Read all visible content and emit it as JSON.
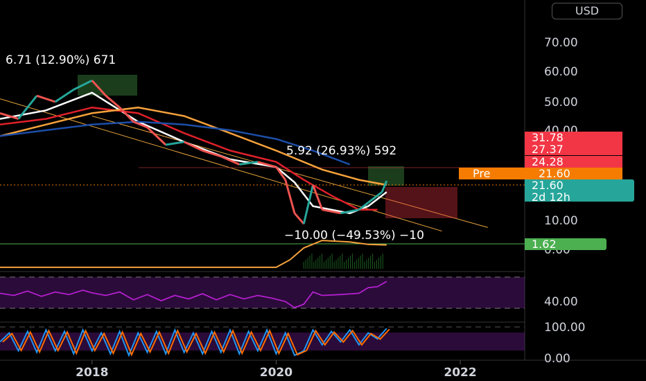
{
  "currency": "USD",
  "chart_data": {
    "type": "line",
    "main": {
      "y_axis": {
        "ticks": [
          "70.00",
          "60.00",
          "50.00",
          "40.00",
          "10.00",
          "0.00"
        ],
        "ylim": [
          0,
          75
        ]
      },
      "annotations": [
        "6.71 (12.90%) 671",
        "5.92 (26.93%) 592",
        "−10.00 (−49.53%) −10"
      ],
      "price_series": [
        {
          "x": 2017.0,
          "y": 46
        },
        {
          "x": 2017.2,
          "y": 44
        },
        {
          "x": 2017.4,
          "y": 52
        },
        {
          "x": 2017.6,
          "y": 50
        },
        {
          "x": 2017.8,
          "y": 54
        },
        {
          "x": 2018.0,
          "y": 57
        },
        {
          "x": 2018.15,
          "y": 52
        },
        {
          "x": 2018.3,
          "y": 48
        },
        {
          "x": 2018.45,
          "y": 43
        },
        {
          "x": 2018.6,
          "y": 41
        },
        {
          "x": 2018.8,
          "y": 35
        },
        {
          "x": 2019.0,
          "y": 36
        },
        {
          "x": 2019.2,
          "y": 33
        },
        {
          "x": 2019.4,
          "y": 31
        },
        {
          "x": 2019.6,
          "y": 28
        },
        {
          "x": 2019.8,
          "y": 29
        },
        {
          "x": 2020.0,
          "y": 27
        },
        {
          "x": 2020.1,
          "y": 22
        },
        {
          "x": 2020.2,
          "y": 12
        },
        {
          "x": 2020.3,
          "y": 9
        },
        {
          "x": 2020.4,
          "y": 20
        },
        {
          "x": 2020.5,
          "y": 13
        },
        {
          "x": 2020.7,
          "y": 12
        },
        {
          "x": 2020.9,
          "y": 13
        },
        {
          "x": 2021.0,
          "y": 15
        },
        {
          "x": 2021.15,
          "y": 18
        },
        {
          "x": 2021.2,
          "y": 21.6
        }
      ],
      "moving_averages": [
        {
          "color": "#ffffff",
          "values": [
            {
              "x": 2017.0,
              "y": 44
            },
            {
              "x": 2017.5,
              "y": 47
            },
            {
              "x": 2018.0,
              "y": 53
            },
            {
              "x": 2018.5,
              "y": 43
            },
            {
              "x": 2019.0,
              "y": 36
            },
            {
              "x": 2019.5,
              "y": 30
            },
            {
              "x": 2020.0,
              "y": 27
            },
            {
              "x": 2020.2,
              "y": 21
            },
            {
              "x": 2020.4,
              "y": 14
            },
            {
              "x": 2020.8,
              "y": 12
            },
            {
              "x": 2021.0,
              "y": 14
            },
            {
              "x": 2021.2,
              "y": 18
            }
          ]
        },
        {
          "color": "#e0202a",
          "values": [
            {
              "x": 2017.0,
              "y": 42
            },
            {
              "x": 2017.5,
              "y": 44
            },
            {
              "x": 2018.0,
              "y": 48
            },
            {
              "x": 2018.5,
              "y": 46
            },
            {
              "x": 2019.0,
              "y": 39
            },
            {
              "x": 2019.5,
              "y": 33
            },
            {
              "x": 2020.0,
              "y": 29
            },
            {
              "x": 2020.3,
              "y": 22
            },
            {
              "x": 2020.6,
              "y": 17
            },
            {
              "x": 2020.9,
              "y": 13
            },
            {
              "x": 2021.1,
              "y": 13
            }
          ]
        },
        {
          "color": "#f7a23c",
          "values": [
            {
              "x": 2017.0,
              "y": 38
            },
            {
              "x": 2017.5,
              "y": 42
            },
            {
              "x": 2018.0,
              "y": 46
            },
            {
              "x": 2018.5,
              "y": 48
            },
            {
              "x": 2019.0,
              "y": 45
            },
            {
              "x": 2019.5,
              "y": 39
            },
            {
              "x": 2020.0,
              "y": 33
            },
            {
              "x": 2020.5,
              "y": 26
            },
            {
              "x": 2020.9,
              "y": 22
            },
            {
              "x": 2021.2,
              "y": 20
            }
          ]
        },
        {
          "color": "#1c4ea8",
          "values": [
            {
              "x": 2017.0,
              "y": 38
            },
            {
              "x": 2017.5,
              "y": 40
            },
            {
              "x": 2018.0,
              "y": 42
            },
            {
              "x": 2018.5,
              "y": 43
            },
            {
              "x": 2019.0,
              "y": 42
            },
            {
              "x": 2019.5,
              "y": 40
            },
            {
              "x": 2020.0,
              "y": 37
            },
            {
              "x": 2020.4,
              "y": 33
            },
            {
              "x": 2020.8,
              "y": 28
            }
          ]
        }
      ],
      "trend_channel": [
        {
          "from": {
            "x": 2017.0,
            "y": 51
          },
          "to": {
            "x": 2021.8,
            "y": 7
          }
        },
        {
          "from": {
            "x": 2018.0,
            "y": 45
          },
          "to": {
            "x": 2022.3,
            "y": 8
          }
        }
      ],
      "price_labels": [
        {
          "text": "31.78",
          "color": "#f23645"
        },
        {
          "text": "27.37",
          "color": "#f23645"
        },
        {
          "text": "24.28",
          "color": "#f23645"
        },
        {
          "text": "Pre",
          "value": "21.60",
          "color": "#f57c00"
        },
        {
          "text": "21.60",
          "sub": "2d 12h",
          "color": "#26a69a"
        },
        {
          "text": "1.62",
          "color": "#4caf50"
        }
      ]
    },
    "volume": {
      "ticks": [
        "0.00"
      ],
      "values": [
        {
          "x": 2017.0,
          "y": 0.05
        },
        {
          "x": 2020.0,
          "y": 0.05
        },
        {
          "x": 2020.15,
          "y": 0.3
        },
        {
          "x": 2020.3,
          "y": 0.7
        },
        {
          "x": 2020.5,
          "y": 0.95
        },
        {
          "x": 2020.8,
          "y": 0.9
        },
        {
          "x": 2021.0,
          "y": 0.82
        },
        {
          "x": 2021.2,
          "y": 0.8
        }
      ]
    },
    "rsi": {
      "ticks": [
        "40.00"
      ],
      "ylim": [
        0,
        100
      ],
      "values": [
        {
          "x": 2017.0,
          "y": 55
        },
        {
          "x": 2017.15,
          "y": 50
        },
        {
          "x": 2017.3,
          "y": 60
        },
        {
          "x": 2017.45,
          "y": 48
        },
        {
          "x": 2017.6,
          "y": 58
        },
        {
          "x": 2017.75,
          "y": 52
        },
        {
          "x": 2017.9,
          "y": 62
        },
        {
          "x": 2018.0,
          "y": 56
        },
        {
          "x": 2018.15,
          "y": 50
        },
        {
          "x": 2018.3,
          "y": 58
        },
        {
          "x": 2018.45,
          "y": 40
        },
        {
          "x": 2018.6,
          "y": 52
        },
        {
          "x": 2018.75,
          "y": 38
        },
        {
          "x": 2018.9,
          "y": 50
        },
        {
          "x": 2019.05,
          "y": 42
        },
        {
          "x": 2019.2,
          "y": 54
        },
        {
          "x": 2019.35,
          "y": 40
        },
        {
          "x": 2019.5,
          "y": 52
        },
        {
          "x": 2019.65,
          "y": 42
        },
        {
          "x": 2019.8,
          "y": 50
        },
        {
          "x": 2019.95,
          "y": 44
        },
        {
          "x": 2020.1,
          "y": 36
        },
        {
          "x": 2020.2,
          "y": 22
        },
        {
          "x": 2020.3,
          "y": 30
        },
        {
          "x": 2020.4,
          "y": 58
        },
        {
          "x": 2020.5,
          "y": 50
        },
        {
          "x": 2020.7,
          "y": 52
        },
        {
          "x": 2020.9,
          "y": 55
        },
        {
          "x": 2021.0,
          "y": 68
        },
        {
          "x": 2021.1,
          "y": 70
        },
        {
          "x": 2021.2,
          "y": 82
        }
      ]
    },
    "stoch": {
      "ticks": [
        "100.00",
        "0.00"
      ],
      "ylim": [
        0,
        100
      ],
      "values": [
        {
          "x": 2017.0,
          "y": 50
        },
        {
          "x": 2017.1,
          "y": 80
        },
        {
          "x": 2017.2,
          "y": 20
        },
        {
          "x": 2017.3,
          "y": 85
        },
        {
          "x": 2017.4,
          "y": 15
        },
        {
          "x": 2017.5,
          "y": 90
        },
        {
          "x": 2017.6,
          "y": 20
        },
        {
          "x": 2017.7,
          "y": 85
        },
        {
          "x": 2017.8,
          "y": 10
        },
        {
          "x": 2017.9,
          "y": 90
        },
        {
          "x": 2018.0,
          "y": 20
        },
        {
          "x": 2018.1,
          "y": 80
        },
        {
          "x": 2018.2,
          "y": 10
        },
        {
          "x": 2018.3,
          "y": 85
        },
        {
          "x": 2018.4,
          "y": 5
        },
        {
          "x": 2018.5,
          "y": 80
        },
        {
          "x": 2018.6,
          "y": 15
        },
        {
          "x": 2018.7,
          "y": 85
        },
        {
          "x": 2018.8,
          "y": 10
        },
        {
          "x": 2018.9,
          "y": 90
        },
        {
          "x": 2019.0,
          "y": 15
        },
        {
          "x": 2019.1,
          "y": 80
        },
        {
          "x": 2019.2,
          "y": 10
        },
        {
          "x": 2019.3,
          "y": 85
        },
        {
          "x": 2019.4,
          "y": 15
        },
        {
          "x": 2019.5,
          "y": 90
        },
        {
          "x": 2019.6,
          "y": 10
        },
        {
          "x": 2019.7,
          "y": 85
        },
        {
          "x": 2019.8,
          "y": 20
        },
        {
          "x": 2019.9,
          "y": 90
        },
        {
          "x": 2020.0,
          "y": 10
        },
        {
          "x": 2020.1,
          "y": 80
        },
        {
          "x": 2020.2,
          "y": 5
        },
        {
          "x": 2020.3,
          "y": 20
        },
        {
          "x": 2020.4,
          "y": 90
        },
        {
          "x": 2020.5,
          "y": 40
        },
        {
          "x": 2020.6,
          "y": 85
        },
        {
          "x": 2020.7,
          "y": 50
        },
        {
          "x": 2020.8,
          "y": 90
        },
        {
          "x": 2020.9,
          "y": 40
        },
        {
          "x": 2021.0,
          "y": 80
        },
        {
          "x": 2021.1,
          "y": 60
        },
        {
          "x": 2021.2,
          "y": 95
        }
      ]
    },
    "x_axis": {
      "ticks": [
        {
          "label": "2018",
          "x": 2018.0
        },
        {
          "label": "2020",
          "x": 2020.0
        },
        {
          "label": "2022",
          "x": 2022.0
        }
      ],
      "xlim": [
        2017.0,
        2022.7
      ]
    }
  }
}
